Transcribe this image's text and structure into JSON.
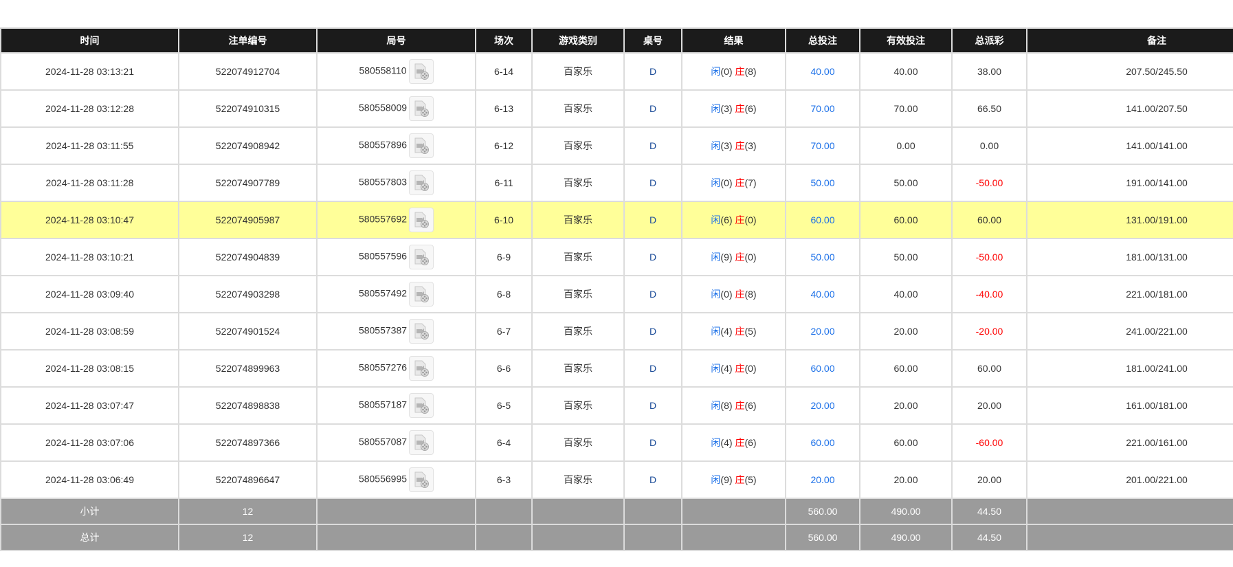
{
  "headers": [
    "时间",
    "注单编号",
    "局号",
    "场次",
    "游戏类别",
    "桌号",
    "结果",
    "总投注",
    "有效投注",
    "总派彩",
    "备注"
  ],
  "result_labels": {
    "player": "闲",
    "banker": "庄"
  },
  "colors": {
    "header_bg": "#1b1b1b",
    "highlight": "#ffff99",
    "summary_bg": "#9b9b9b",
    "blue": "#1a6fe8",
    "red": "#ff0000"
  },
  "rows": [
    {
      "time": "2024-11-28 03:13:21",
      "bet_id": "522074912704",
      "round": "580558110",
      "shoe": "6-14",
      "game": "百家乐",
      "table": "D",
      "player": "(0)",
      "banker": "(8)",
      "total_bet": "40.00",
      "valid_bet": "40.00",
      "payout": "38.00",
      "payout_negative": false,
      "note": "207.50/245.50"
    },
    {
      "time": "2024-11-28 03:12:28",
      "bet_id": "522074910315",
      "round": "580558009",
      "shoe": "6-13",
      "game": "百家乐",
      "table": "D",
      "player": "(3)",
      "banker": "(6)",
      "total_bet": "70.00",
      "valid_bet": "70.00",
      "payout": "66.50",
      "payout_negative": false,
      "note": "141.00/207.50"
    },
    {
      "time": "2024-11-28 03:11:55",
      "bet_id": "522074908942",
      "round": "580557896",
      "shoe": "6-12",
      "game": "百家乐",
      "table": "D",
      "player": "(3)",
      "banker": "(3)",
      "total_bet": "70.00",
      "valid_bet": "0.00",
      "payout": "0.00",
      "payout_negative": false,
      "note": "141.00/141.00"
    },
    {
      "time": "2024-11-28 03:11:28",
      "bet_id": "522074907789",
      "round": "580557803",
      "shoe": "6-11",
      "game": "百家乐",
      "table": "D",
      "player": "(0)",
      "banker": "(7)",
      "total_bet": "50.00",
      "valid_bet": "50.00",
      "payout": "-50.00",
      "payout_negative": true,
      "note": "191.00/141.00"
    },
    {
      "time": "2024-11-28 03:10:47",
      "bet_id": "522074905987",
      "round": "580557692",
      "shoe": "6-10",
      "game": "百家乐",
      "table": "D",
      "player": "(6)",
      "banker": "(0)",
      "total_bet": "60.00",
      "valid_bet": "60.00",
      "payout": "60.00",
      "payout_negative": false,
      "note": "131.00/191.00",
      "highlighted": true
    },
    {
      "time": "2024-11-28 03:10:21",
      "bet_id": "522074904839",
      "round": "580557596",
      "shoe": "6-9",
      "game": "百家乐",
      "table": "D",
      "player": "(9)",
      "banker": "(0)",
      "total_bet": "50.00",
      "valid_bet": "50.00",
      "payout": "-50.00",
      "payout_negative": true,
      "note": "181.00/131.00"
    },
    {
      "time": "2024-11-28 03:09:40",
      "bet_id": "522074903298",
      "round": "580557492",
      "shoe": "6-8",
      "game": "百家乐",
      "table": "D",
      "player": "(0)",
      "banker": "(8)",
      "total_bet": "40.00",
      "valid_bet": "40.00",
      "payout": "-40.00",
      "payout_negative": true,
      "note": "221.00/181.00"
    },
    {
      "time": "2024-11-28 03:08:59",
      "bet_id": "522074901524",
      "round": "580557387",
      "shoe": "6-7",
      "game": "百家乐",
      "table": "D",
      "player": "(4)",
      "banker": "(5)",
      "total_bet": "20.00",
      "valid_bet": "20.00",
      "payout": "-20.00",
      "payout_negative": true,
      "note": "241.00/221.00"
    },
    {
      "time": "2024-11-28 03:08:15",
      "bet_id": "522074899963",
      "round": "580557276",
      "shoe": "6-6",
      "game": "百家乐",
      "table": "D",
      "player": "(4)",
      "banker": "(0)",
      "total_bet": "60.00",
      "valid_bet": "60.00",
      "payout": "60.00",
      "payout_negative": false,
      "note": "181.00/241.00"
    },
    {
      "time": "2024-11-28 03:07:47",
      "bet_id": "522074898838",
      "round": "580557187",
      "shoe": "6-5",
      "game": "百家乐",
      "table": "D",
      "player": "(8)",
      "banker": "(6)",
      "total_bet": "20.00",
      "valid_bet": "20.00",
      "payout": "20.00",
      "payout_negative": false,
      "note": "161.00/181.00"
    },
    {
      "time": "2024-11-28 03:07:06",
      "bet_id": "522074897366",
      "round": "580557087",
      "shoe": "6-4",
      "game": "百家乐",
      "table": "D",
      "player": "(4)",
      "banker": "(6)",
      "total_bet": "60.00",
      "valid_bet": "60.00",
      "payout": "-60.00",
      "payout_negative": true,
      "note": "221.00/161.00"
    },
    {
      "time": "2024-11-28 03:06:49",
      "bet_id": "522074896647",
      "round": "580556995",
      "shoe": "6-3",
      "game": "百家乐",
      "table": "D",
      "player": "(9)",
      "banker": "(5)",
      "total_bet": "20.00",
      "valid_bet": "20.00",
      "payout": "20.00",
      "payout_negative": false,
      "note": "201.00/221.00"
    }
  ],
  "summary": [
    {
      "label": "小计",
      "count": "12",
      "total_bet": "560.00",
      "valid_bet": "490.00",
      "payout": "44.50"
    },
    {
      "label": "总计",
      "count": "12",
      "total_bet": "560.00",
      "valid_bet": "490.00",
      "payout": "44.50"
    }
  ]
}
